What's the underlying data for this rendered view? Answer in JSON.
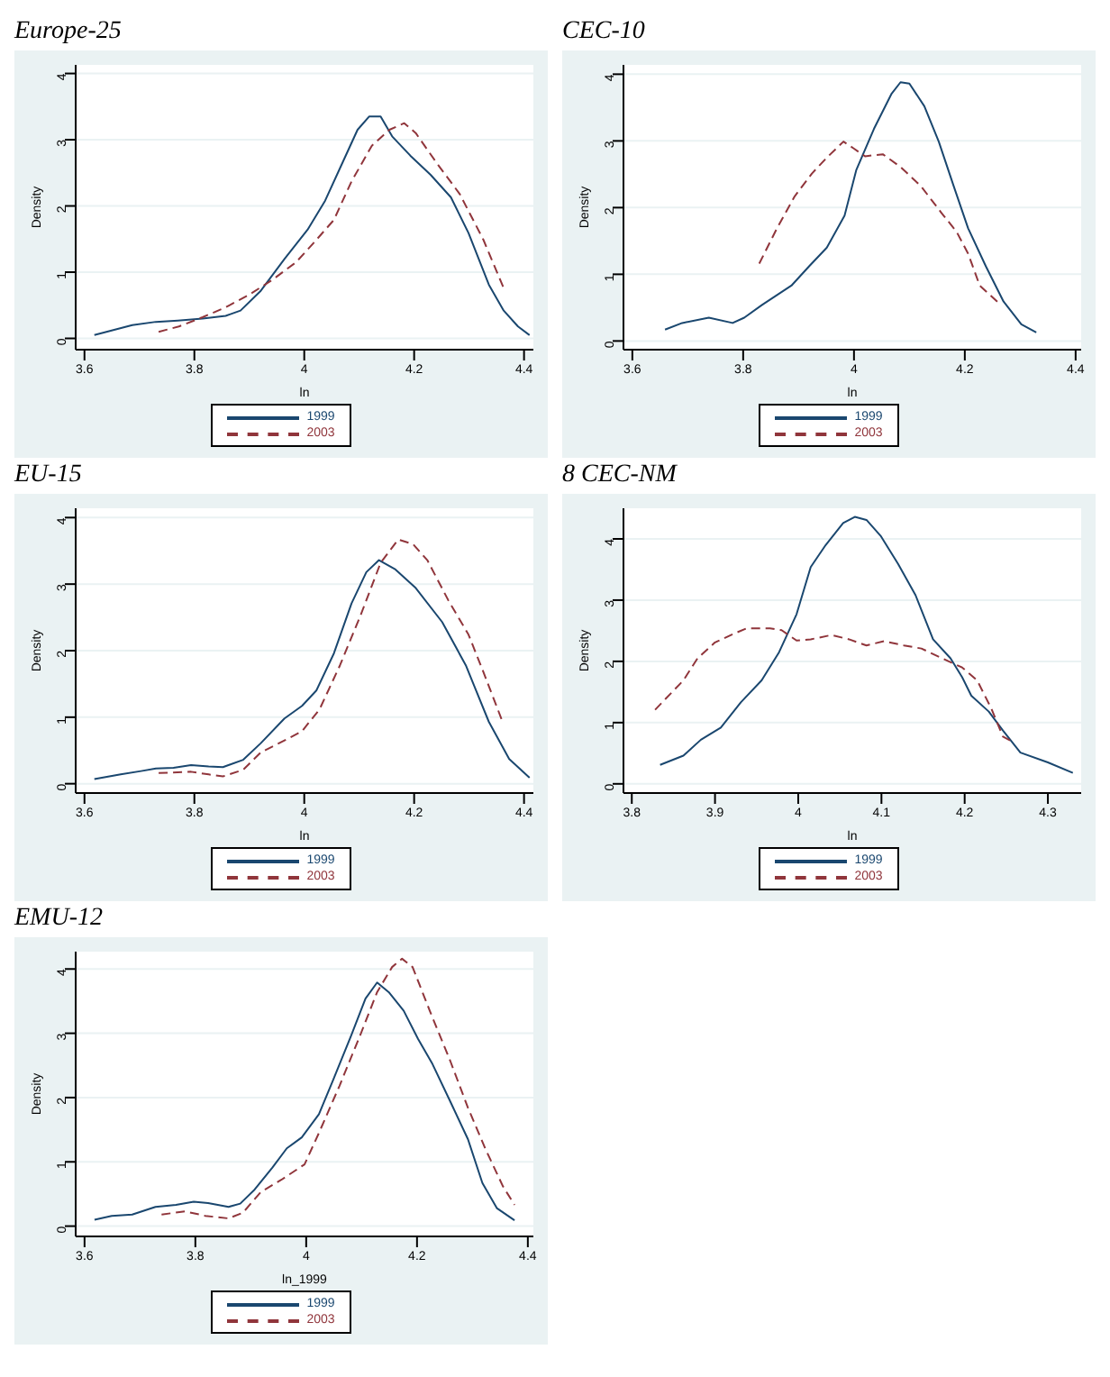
{
  "chart_data": [
    {
      "type": "line",
      "title": "Europe-25",
      "xlabel": "ln",
      "ylabel": "Density",
      "xlim": [
        3.584,
        4.417
      ],
      "xticks": [
        3.6,
        3.8,
        4,
        4.2,
        4.4
      ],
      "ylim": [
        -0.17,
        4.13
      ],
      "yticks": [
        0,
        1,
        2,
        3,
        4
      ],
      "grid": "y",
      "legend": "bottom",
      "marker": "none",
      "series": [
        {
          "name": "1999",
          "color": "#1a476f",
          "line_style": "solid",
          "x": [
            3.618,
            3.687,
            3.73,
            3.77,
            3.815,
            3.857,
            3.884,
            3.92,
            3.964,
            4.006,
            4.038,
            4.07,
            4.097,
            4.118,
            4.139,
            4.16,
            4.193,
            4.23,
            4.267,
            4.299,
            4.336,
            4.363,
            4.389,
            4.41
          ],
          "values": [
            0.05,
            0.2,
            0.25,
            0.27,
            0.3,
            0.34,
            0.42,
            0.71,
            1.2,
            1.64,
            2.08,
            2.66,
            3.15,
            3.35,
            3.35,
            3.05,
            2.76,
            2.47,
            2.13,
            1.59,
            0.81,
            0.42,
            0.18,
            0.05
          ]
        },
        {
          "name": "2003",
          "color": "#90353b",
          "line_style": "dashed",
          "x": [
            3.735,
            3.772,
            3.815,
            3.857,
            3.9,
            3.943,
            3.985,
            4.017,
            4.054,
            4.086,
            4.123,
            4.155,
            4.182,
            4.203,
            4.24,
            4.283,
            4.326,
            4.363
          ],
          "values": [
            0.1,
            0.18,
            0.32,
            0.47,
            0.66,
            0.89,
            1.15,
            1.44,
            1.79,
            2.37,
            2.91,
            3.15,
            3.25,
            3.1,
            2.66,
            2.18,
            1.49,
            0.76
          ]
        }
      ]
    },
    {
      "type": "line",
      "title": "CEC-10",
      "xlabel": "ln",
      "ylabel": "Density",
      "xlim": [
        3.584,
        4.41
      ],
      "xticks": [
        3.6,
        3.8,
        4,
        4.2,
        4.4
      ],
      "ylim": [
        -0.13,
        4.14
      ],
      "yticks": [
        0,
        1,
        2,
        3,
        4
      ],
      "grid": "y",
      "legend": "bottom",
      "marker": "none",
      "series": [
        {
          "name": "1999",
          "color": "#1a476f",
          "line_style": "solid",
          "x": [
            3.659,
            3.69,
            3.738,
            3.781,
            3.802,
            3.834,
            3.887,
            3.919,
            3.951,
            3.983,
            4.004,
            4.036,
            4.068,
            4.084,
            4.1,
            4.127,
            4.153,
            4.18,
            4.206,
            4.238,
            4.27,
            4.302,
            4.329
          ],
          "values": [
            0.17,
            0.27,
            0.35,
            0.27,
            0.35,
            0.54,
            0.83,
            1.12,
            1.4,
            1.88,
            2.56,
            3.18,
            3.71,
            3.88,
            3.86,
            3.52,
            2.99,
            2.32,
            1.69,
            1.12,
            0.59,
            0.25,
            0.13
          ]
        },
        {
          "name": "2003",
          "color": "#90353b",
          "line_style": "dashed",
          "x": [
            3.829,
            3.861,
            3.893,
            3.924,
            3.951,
            3.981,
            3.999,
            4.02,
            4.052,
            4.084,
            4.121,
            4.157,
            4.185,
            4.206,
            4.227,
            4.265
          ],
          "values": [
            1.16,
            1.69,
            2.17,
            2.51,
            2.75,
            2.99,
            2.89,
            2.77,
            2.8,
            2.61,
            2.32,
            1.93,
            1.64,
            1.31,
            0.83,
            0.54
          ]
        }
      ]
    },
    {
      "type": "line",
      "title": "EU-15",
      "xlabel": "ln",
      "ylabel": "Density",
      "xlim": [
        3.584,
        4.417
      ],
      "xticks": [
        3.6,
        3.8,
        4,
        4.2,
        4.4
      ],
      "ylim": [
        -0.14,
        4.14
      ],
      "yticks": [
        0,
        1,
        2,
        3,
        4
      ],
      "grid": "y",
      "legend": "bottom",
      "marker": "none",
      "series": [
        {
          "name": "1999",
          "color": "#1a476f",
          "line_style": "solid",
          "x": [
            3.618,
            3.666,
            3.703,
            3.73,
            3.762,
            3.794,
            3.826,
            3.852,
            3.889,
            3.921,
            3.964,
            3.996,
            4.022,
            4.054,
            4.086,
            4.113,
            4.136,
            4.166,
            4.203,
            4.251,
            4.294,
            4.336,
            4.373,
            4.41
          ],
          "values": [
            0.07,
            0.14,
            0.19,
            0.23,
            0.24,
            0.28,
            0.26,
            0.25,
            0.36,
            0.61,
            0.98,
            1.17,
            1.4,
            1.96,
            2.71,
            3.18,
            3.36,
            3.22,
            2.94,
            2.43,
            1.78,
            0.93,
            0.37,
            0.09
          ]
        },
        {
          "name": "2003",
          "color": "#90353b",
          "line_style": "dashed",
          "x": [
            3.735,
            3.794,
            3.826,
            3.852,
            3.889,
            3.921,
            3.964,
            3.996,
            4.028,
            4.065,
            4.102,
            4.139,
            4.171,
            4.198,
            4.224,
            4.262,
            4.299,
            4.326,
            4.36
          ],
          "values": [
            0.16,
            0.18,
            0.14,
            0.11,
            0.21,
            0.47,
            0.65,
            0.79,
            1.12,
            1.78,
            2.52,
            3.32,
            3.67,
            3.6,
            3.36,
            2.76,
            2.24,
            1.68,
            0.95
          ]
        }
      ]
    },
    {
      "type": "line",
      "title": "8 CEC-NM",
      "xlabel": "ln",
      "ylabel": "Density",
      "xlim": [
        3.79,
        4.34
      ],
      "xticks": [
        3.8,
        3.9,
        4,
        4.1,
        4.2,
        4.3
      ],
      "ylim": [
        -0.15,
        4.5
      ],
      "yticks": [
        0,
        1,
        2,
        3,
        4
      ],
      "grid": "y",
      "legend": "bottom",
      "marker": "none",
      "series": [
        {
          "name": "1999",
          "color": "#1a476f",
          "line_style": "solid",
          "x": [
            3.834,
            3.862,
            3.883,
            3.907,
            3.931,
            3.956,
            3.977,
            3.998,
            4.015,
            4.033,
            4.054,
            4.068,
            4.082,
            4.099,
            4.12,
            4.141,
            4.162,
            4.183,
            4.197,
            4.208,
            4.229,
            4.246,
            4.267,
            4.3,
            4.33
          ],
          "values": [
            0.31,
            0.46,
            0.72,
            0.92,
            1.33,
            1.69,
            2.15,
            2.77,
            3.54,
            3.9,
            4.26,
            4.36,
            4.31,
            4.05,
            3.59,
            3.08,
            2.36,
            2.05,
            1.74,
            1.44,
            1.18,
            0.87,
            0.51,
            0.35,
            0.18
          ]
        },
        {
          "name": "2003",
          "color": "#90353b",
          "line_style": "dashed",
          "x": [
            3.828,
            3.862,
            3.879,
            3.9,
            3.924,
            3.938,
            3.966,
            3.98,
            3.998,
            4.015,
            4.04,
            4.061,
            4.082,
            4.103,
            4.127,
            4.148,
            4.173,
            4.197,
            4.215,
            4.232,
            4.246,
            4.26
          ],
          "values": [
            1.21,
            1.69,
            2.05,
            2.31,
            2.46,
            2.54,
            2.54,
            2.51,
            2.34,
            2.36,
            2.43,
            2.36,
            2.26,
            2.33,
            2.26,
            2.21,
            2.05,
            1.9,
            1.69,
            1.23,
            0.77,
            0.67
          ]
        }
      ]
    },
    {
      "type": "line",
      "title": "EMU-12",
      "xlabel": "ln_1999",
      "ylabel": "Density",
      "xlim": [
        3.584,
        4.41
      ],
      "xticks": [
        3.6,
        3.8,
        4,
        4.2,
        4.4
      ],
      "ylim": [
        -0.16,
        4.27
      ],
      "yticks": [
        0,
        1,
        2,
        3,
        4
      ],
      "grid": "y",
      "legend": "bottom",
      "marker": "none",
      "series": [
        {
          "name": "1999",
          "color": "#1a476f",
          "line_style": "solid",
          "x": [
            3.618,
            3.649,
            3.686,
            3.728,
            3.765,
            3.797,
            3.823,
            3.86,
            3.881,
            3.907,
            3.939,
            3.965,
            3.992,
            4.023,
            4.049,
            4.081,
            4.107,
            4.128,
            4.149,
            4.176,
            4.202,
            4.228,
            4.26,
            4.292,
            4.318,
            4.344,
            4.376
          ],
          "values": [
            0.1,
            0.16,
            0.18,
            0.3,
            0.33,
            0.38,
            0.36,
            0.3,
            0.35,
            0.57,
            0.91,
            1.21,
            1.38,
            1.74,
            2.28,
            2.96,
            3.54,
            3.79,
            3.64,
            3.35,
            2.91,
            2.52,
            1.94,
            1.35,
            0.67,
            0.28,
            0.09
          ]
        },
        {
          "name": "2003",
          "color": "#90353b",
          "line_style": "dashed",
          "x": [
            3.739,
            3.781,
            3.818,
            3.86,
            3.886,
            3.918,
            3.955,
            3.997,
            4.023,
            4.06,
            4.097,
            4.128,
            4.155,
            4.173,
            4.192,
            4.223,
            4.26,
            4.292,
            4.323,
            4.355,
            4.376
          ],
          "values": [
            0.18,
            0.23,
            0.16,
            0.12,
            0.21,
            0.53,
            0.72,
            0.96,
            1.45,
            2.18,
            2.96,
            3.64,
            4.03,
            4.16,
            4.03,
            3.35,
            2.57,
            1.84,
            1.21,
            0.62,
            0.33
          ]
        }
      ]
    }
  ]
}
